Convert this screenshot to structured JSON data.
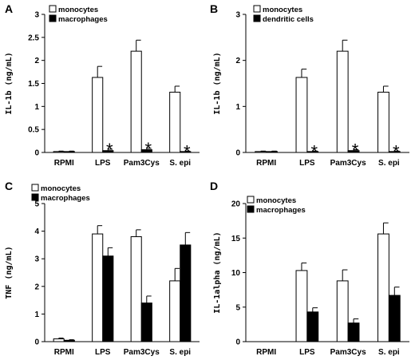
{
  "chart_data": [
    {
      "panel": "A",
      "type": "bar",
      "ylabel": "IL-1b (ng/mL)",
      "ylim": [
        0,
        3
      ],
      "yticks": [
        "0",
        "0.5",
        "1",
        "1.5",
        "2",
        "2.5",
        "3"
      ],
      "categories": [
        "RPMI",
        "LPS",
        "Pam3Cys",
        "S. epi"
      ],
      "legend_position": "top-left",
      "series": [
        {
          "name": "monocytes",
          "color": "#ffffff",
          "values": [
            0.02,
            1.63,
            2.2,
            1.31
          ],
          "errors": [
            0.01,
            0.24,
            0.24,
            0.13
          ]
        },
        {
          "name": "macrophages",
          "color": "#000000",
          "values": [
            0.02,
            0.04,
            0.06,
            0.02
          ],
          "errors": [
            0.01,
            0.03,
            0.03,
            0.01
          ]
        }
      ],
      "annotations": [
        {
          "text": "*",
          "category": "LPS"
        },
        {
          "text": "*",
          "category": "Pam3Cys"
        },
        {
          "text": "*",
          "category": "S. epi"
        }
      ]
    },
    {
      "panel": "B",
      "type": "bar",
      "ylabel": "IL-1b (ng/mL)",
      "ylim": [
        0,
        3
      ],
      "yticks": [
        "0",
        "1",
        "2",
        "3"
      ],
      "categories": [
        "RPMI",
        "LPS",
        "Pam3Cys",
        "S. epi"
      ],
      "legend_position": "top-left",
      "series": [
        {
          "name": "monocytes",
          "color": "#ffffff",
          "values": [
            0.02,
            1.63,
            2.2,
            1.31
          ],
          "errors": [
            0.01,
            0.18,
            0.24,
            0.13
          ]
        },
        {
          "name": "dendritic cells",
          "color": "#000000",
          "values": [
            0.02,
            0.02,
            0.04,
            0.02
          ],
          "errors": [
            0.01,
            0.01,
            0.02,
            0.01
          ]
        }
      ],
      "annotations": [
        {
          "text": "*",
          "category": "LPS"
        },
        {
          "text": "*",
          "category": "Pam3Cys"
        },
        {
          "text": "*",
          "category": "S. epi"
        }
      ]
    },
    {
      "panel": "C",
      "type": "bar",
      "ylabel": "TNF (ng/mL)",
      "ylim": [
        0,
        5
      ],
      "yticks": [
        "0",
        "1",
        "2",
        "3",
        "4",
        "5"
      ],
      "categories": [
        "RPMI",
        "LPS",
        "Pam3Cys",
        "S. epi"
      ],
      "legend_position": "top-left",
      "series": [
        {
          "name": "monocytes",
          "color": "#ffffff",
          "values": [
            0.1,
            3.9,
            3.8,
            2.2
          ],
          "errors": [
            0.03,
            0.3,
            0.25,
            0.45
          ]
        },
        {
          "name": "macrophages",
          "color": "#000000",
          "values": [
            0.05,
            3.1,
            1.4,
            3.5
          ],
          "errors": [
            0.02,
            0.3,
            0.25,
            0.45
          ]
        }
      ],
      "annotations": []
    },
    {
      "panel": "D",
      "type": "bar",
      "ylabel": "IL-1alpha (ng/mL)",
      "ylim": [
        0,
        20
      ],
      "yticks": [
        "0",
        "5",
        "10",
        "15",
        "20"
      ],
      "categories": [
        "RPMI",
        "LPS",
        "Pam3Cys",
        "S. epi"
      ],
      "legend_position": "top-left",
      "series": [
        {
          "name": "monocytes",
          "color": "#ffffff",
          "values": [
            0.0,
            10.3,
            8.8,
            15.6
          ],
          "errors": [
            0.0,
            1.1,
            1.6,
            1.6
          ]
        },
        {
          "name": "macrophages",
          "color": "#000000",
          "values": [
            0.0,
            4.3,
            2.7,
            6.7
          ],
          "errors": [
            0.0,
            0.6,
            0.6,
            1.2
          ]
        }
      ],
      "annotations": []
    }
  ]
}
